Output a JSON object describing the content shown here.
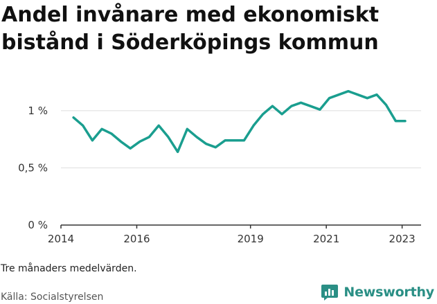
{
  "header": {
    "title": "Andel invånare med ekonomiskt bistånd i Söderköpings kommun"
  },
  "footer": {
    "note": "Tre månaders medelvärden.",
    "source": "Källa: Socialstyrelsen",
    "brand": "Newsworthy",
    "brand_icon": "newsworthy-logo-icon"
  },
  "colors": {
    "line": "#1a9e8f",
    "grid": "#dddddd",
    "axis": "#333333",
    "brand": "#2a8f85"
  },
  "chart_data": {
    "type": "line",
    "title": "Andel invånare med ekonomiskt bistånd i Söderköpings kommun",
    "xlabel": "",
    "ylabel": "",
    "x_range": [
      2014,
      2023.5
    ],
    "ylim": [
      0,
      1.12
    ],
    "grid": true,
    "legend": "none",
    "yticks": [
      {
        "value": 0,
        "label": "0 %"
      },
      {
        "value": 0.5,
        "label": "0,5 %"
      },
      {
        "value": 1,
        "label": "1 %"
      }
    ],
    "xticks": [
      {
        "value": 2014,
        "label": "2014"
      },
      {
        "value": 2016,
        "label": "2016"
      },
      {
        "value": 2019,
        "label": "2019"
      },
      {
        "value": 2021,
        "label": "2021"
      },
      {
        "value": 2023,
        "label": "2023"
      }
    ],
    "series": [
      {
        "x": [
          2014.33,
          2014.58,
          2014.83,
          2015.08,
          2015.33,
          2015.58,
          2015.83,
          2016.08,
          2016.33,
          2016.58,
          2016.83,
          2017.08,
          2017.33,
          2017.58,
          2017.83,
          2018.08,
          2018.33,
          2018.58,
          2018.83,
          2019.08,
          2019.33,
          2019.58,
          2019.83,
          2020.08,
          2020.33,
          2020.58,
          2020.83,
          2021.08,
          2021.33,
          2021.58,
          2021.83,
          2022.08,
          2022.33,
          2022.58,
          2022.83,
          2023.08
        ],
        "values": [
          0.94,
          0.87,
          0.74,
          0.84,
          0.8,
          0.73,
          0.67,
          0.73,
          0.77,
          0.87,
          0.77,
          0.64,
          0.84,
          0.77,
          0.71,
          0.68,
          0.74,
          0.74,
          0.74,
          0.87,
          0.97,
          1.04,
          0.97,
          1.04,
          1.07,
          1.04,
          1.01,
          1.11,
          1.14,
          1.17,
          1.14,
          1.11,
          1.14,
          1.05,
          0.91,
          0.91
        ]
      }
    ]
  }
}
